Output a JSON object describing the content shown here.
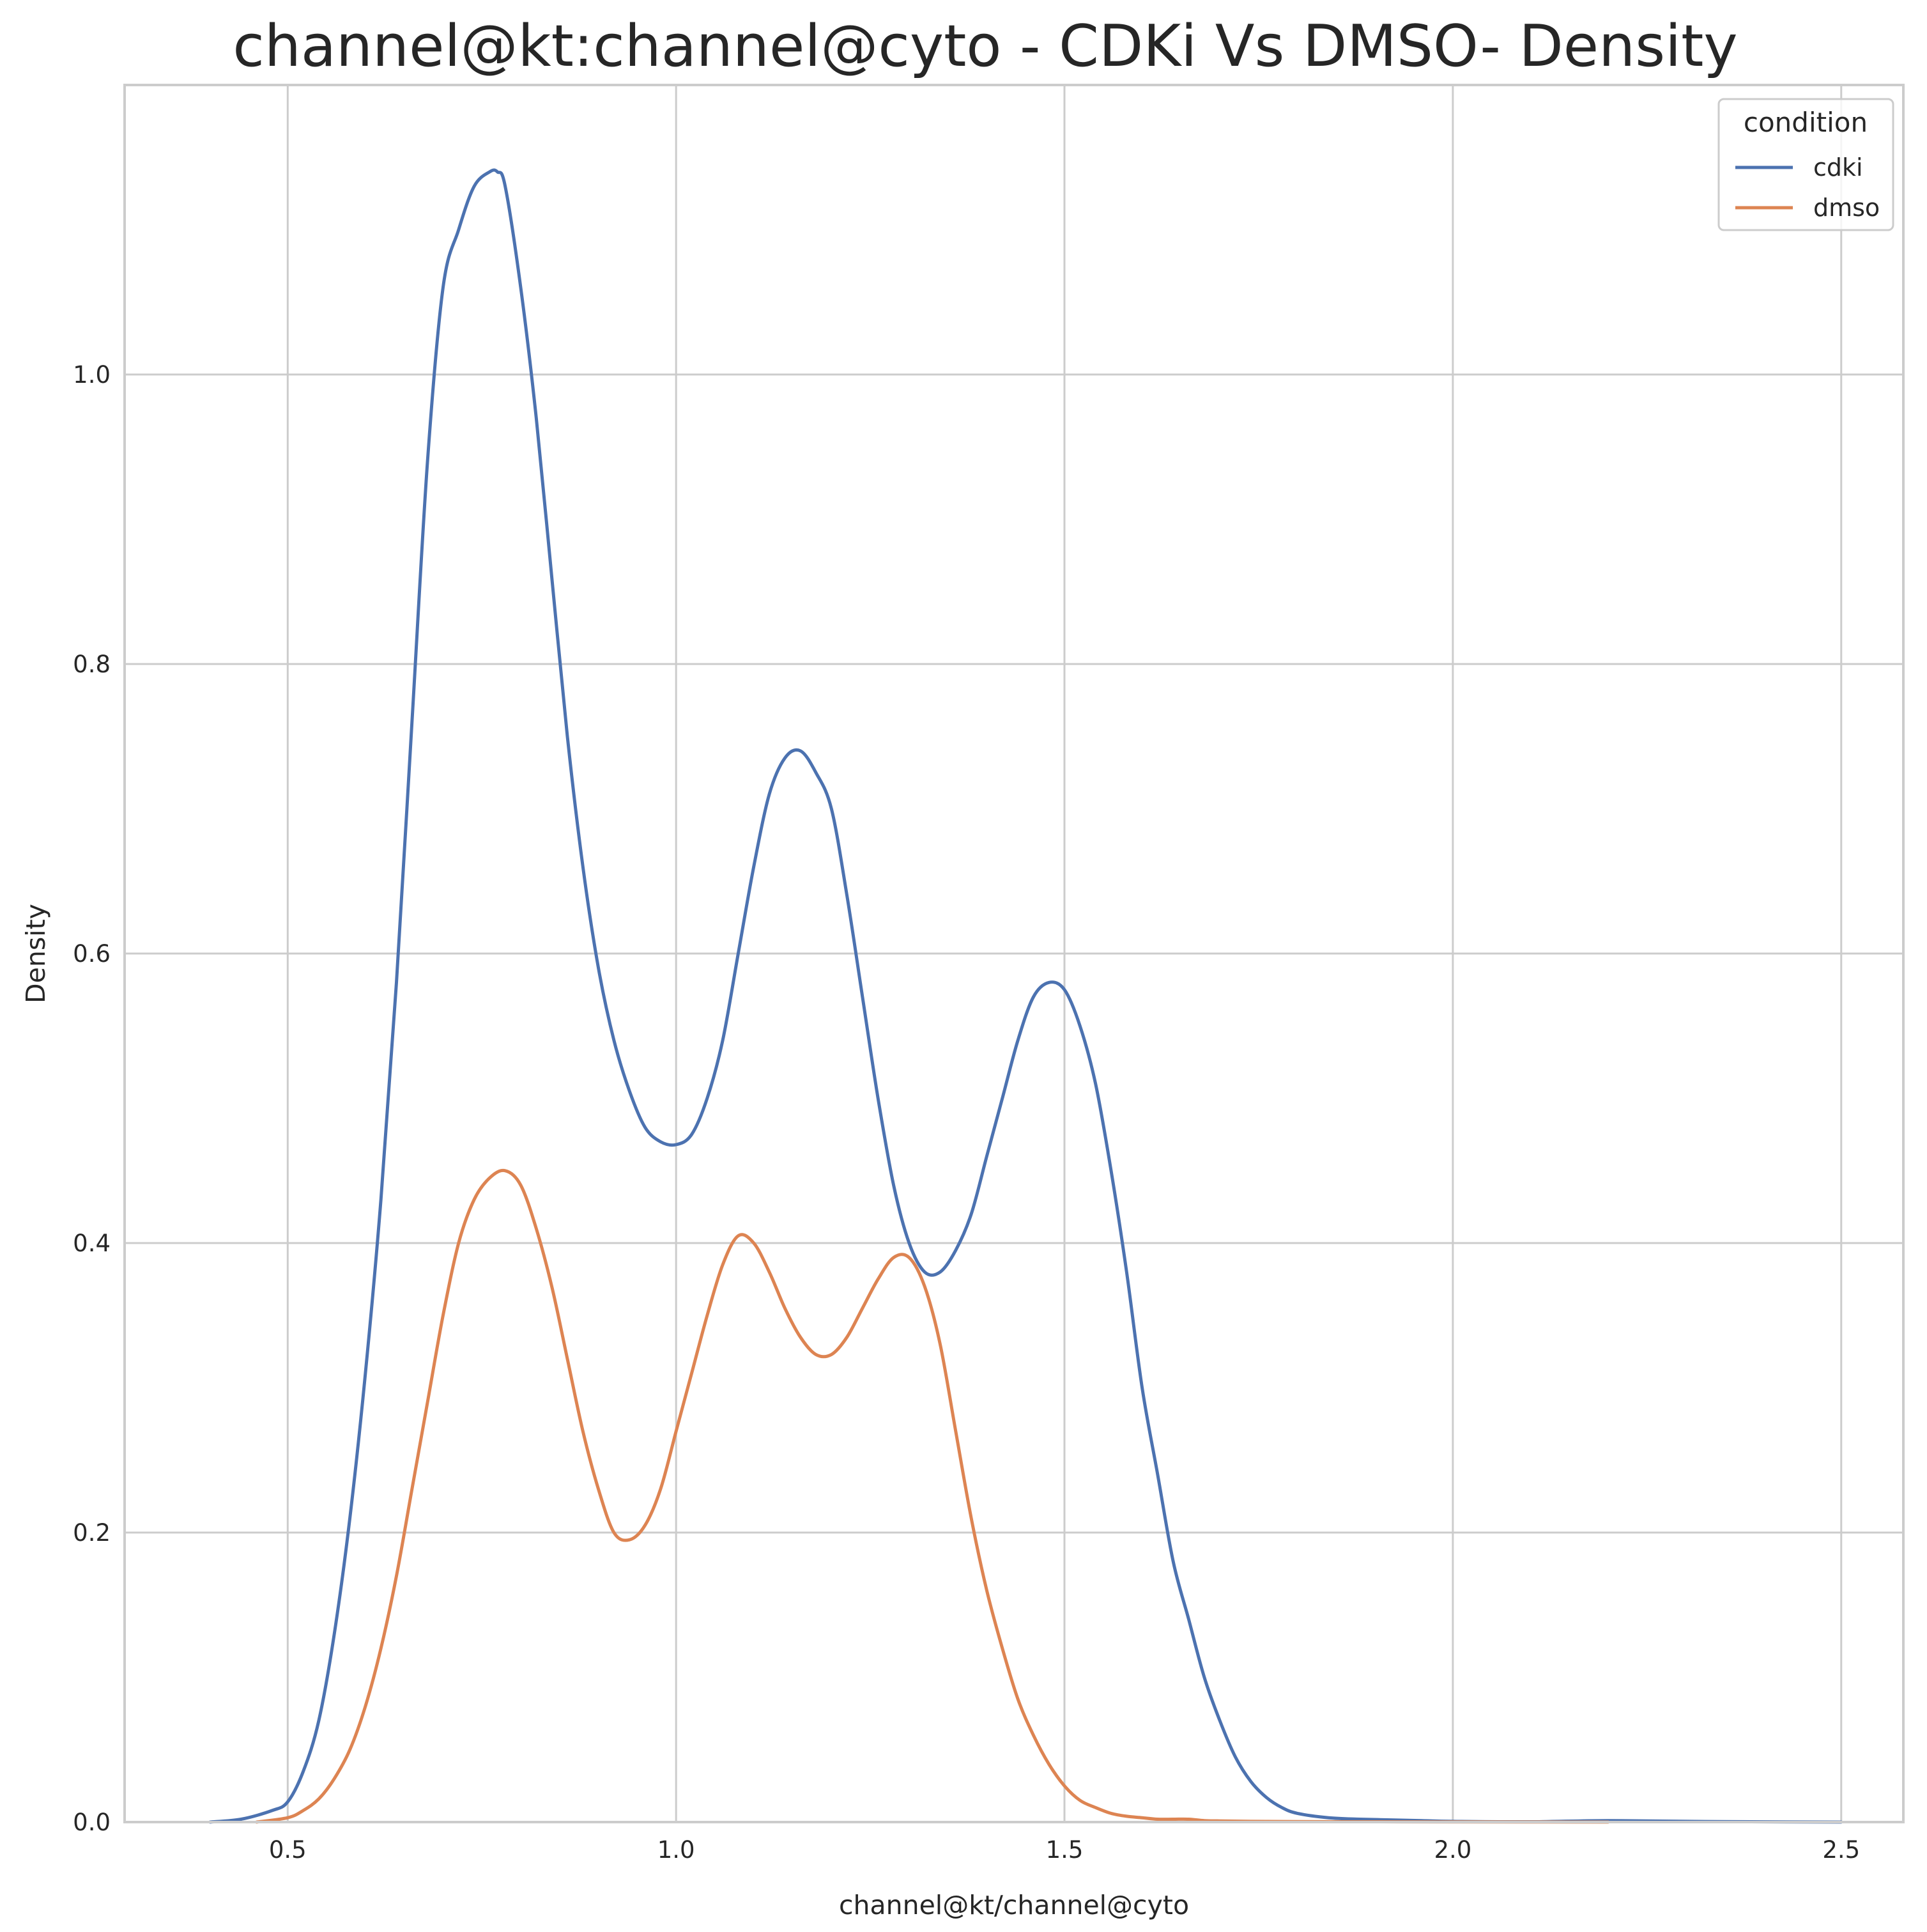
{
  "chart_data": {
    "type": "line",
    "title": "channel@kt:channel@cyto - CDKi Vs DMSO- Density",
    "xlabel": "channel@kt/channel@cyto",
    "ylabel": "Density",
    "xlim": [
      0.29,
      2.58
    ],
    "ylim": [
      0,
      1.2
    ],
    "xticks": [
      0.5,
      1.0,
      1.5,
      2.0,
      2.5
    ],
    "xtick_labels": [
      "0.5",
      "1.0",
      "1.5",
      "2.0",
      "2.5"
    ],
    "yticks": [
      0.0,
      0.2,
      0.4,
      0.6,
      0.8,
      1.0
    ],
    "ytick_labels": [
      "0.0",
      "0.2",
      "0.4",
      "0.6",
      "0.8",
      "1.0"
    ],
    "grid": true,
    "legend": {
      "title": "condition",
      "position": "top-right"
    },
    "series": [
      {
        "name": "cdki",
        "color": "#4c72b0",
        "x": [
          0.4,
          0.44,
          0.48,
          0.5,
          0.52,
          0.54,
          0.56,
          0.58,
          0.6,
          0.62,
          0.64,
          0.66,
          0.68,
          0.7,
          0.72,
          0.74,
          0.76,
          0.77,
          0.78,
          0.8,
          0.82,
          0.84,
          0.86,
          0.88,
          0.9,
          0.92,
          0.94,
          0.96,
          0.98,
          1.0,
          1.02,
          1.04,
          1.06,
          1.08,
          1.1,
          1.12,
          1.14,
          1.16,
          1.18,
          1.2,
          1.22,
          1.24,
          1.26,
          1.28,
          1.3,
          1.32,
          1.34,
          1.36,
          1.38,
          1.4,
          1.42,
          1.44,
          1.46,
          1.48,
          1.5,
          1.52,
          1.54,
          1.56,
          1.58,
          1.6,
          1.62,
          1.64,
          1.66,
          1.68,
          1.7,
          1.72,
          1.74,
          1.76,
          1.78,
          1.8,
          1.84,
          1.88,
          1.92,
          1.96,
          2.0,
          2.1,
          2.2,
          2.34,
          2.5
        ],
        "values": [
          0.0,
          0.002,
          0.008,
          0.014,
          0.035,
          0.07,
          0.13,
          0.21,
          0.31,
          0.43,
          0.58,
          0.76,
          0.94,
          1.06,
          1.1,
          1.13,
          1.14,
          1.14,
          1.13,
          1.06,
          0.97,
          0.86,
          0.75,
          0.66,
          0.59,
          0.54,
          0.505,
          0.48,
          0.47,
          0.468,
          0.475,
          0.5,
          0.54,
          0.6,
          0.66,
          0.71,
          0.735,
          0.74,
          0.725,
          0.7,
          0.64,
          0.57,
          0.5,
          0.44,
          0.4,
          0.38,
          0.38,
          0.395,
          0.42,
          0.46,
          0.5,
          0.54,
          0.57,
          0.58,
          0.575,
          0.55,
          0.51,
          0.45,
          0.38,
          0.3,
          0.24,
          0.18,
          0.14,
          0.1,
          0.07,
          0.045,
          0.028,
          0.017,
          0.01,
          0.006,
          0.003,
          0.002,
          0.0015,
          0.001,
          0.0005,
          0.0002,
          0.001,
          0.0003,
          0.0
        ],
        "note_units": "density"
      },
      {
        "name": "dmso",
        "color": "#dd8452",
        "x": [
          0.46,
          0.5,
          0.52,
          0.54,
          0.56,
          0.58,
          0.6,
          0.62,
          0.64,
          0.66,
          0.68,
          0.7,
          0.72,
          0.74,
          0.76,
          0.78,
          0.8,
          0.82,
          0.84,
          0.86,
          0.88,
          0.9,
          0.92,
          0.94,
          0.96,
          0.98,
          1.0,
          1.02,
          1.04,
          1.06,
          1.08,
          1.1,
          1.12,
          1.14,
          1.16,
          1.18,
          1.2,
          1.22,
          1.24,
          1.26,
          1.28,
          1.3,
          1.32,
          1.34,
          1.36,
          1.38,
          1.4,
          1.42,
          1.44,
          1.46,
          1.48,
          1.5,
          1.52,
          1.54,
          1.56,
          1.58,
          1.6,
          1.62,
          1.64,
          1.66,
          1.68,
          1.7,
          1.74,
          1.8,
          1.9,
          2.0,
          2.2
        ],
        "values": [
          0.0,
          0.003,
          0.008,
          0.016,
          0.03,
          0.05,
          0.08,
          0.12,
          0.17,
          0.23,
          0.29,
          0.35,
          0.4,
          0.43,
          0.445,
          0.45,
          0.44,
          0.41,
          0.37,
          0.32,
          0.27,
          0.23,
          0.2,
          0.195,
          0.205,
          0.23,
          0.27,
          0.31,
          0.35,
          0.385,
          0.405,
          0.4,
          0.38,
          0.355,
          0.335,
          0.323,
          0.323,
          0.335,
          0.355,
          0.375,
          0.39,
          0.39,
          0.37,
          0.33,
          0.27,
          0.21,
          0.16,
          0.12,
          0.085,
          0.06,
          0.04,
          0.025,
          0.015,
          0.01,
          0.006,
          0.004,
          0.003,
          0.002,
          0.002,
          0.002,
          0.001,
          0.0008,
          0.0005,
          0.0003,
          0.0002,
          0.0001,
          0.0
        ],
        "note_units": "density"
      }
    ]
  }
}
